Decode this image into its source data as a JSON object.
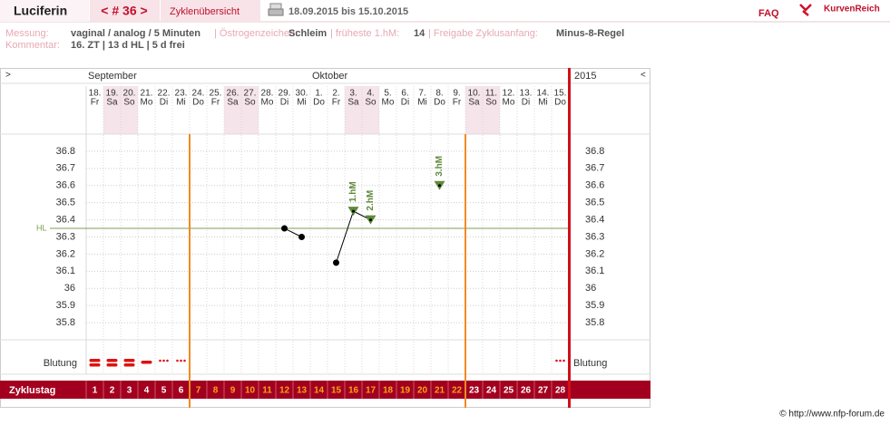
{
  "header": {
    "name": "Luciferin",
    "cycle_nav": "< # 36 >",
    "overview": "Zyklenübersicht",
    "date_range": "18.09.2015 bis 15.10.2015",
    "faq": "FAQ",
    "logo": "KurvenReich"
  },
  "info": {
    "measurement_label": "Messung:",
    "measurement": "vaginal / analog / 5 Minuten",
    "estrogen_label": "| Östrogenzeichen:",
    "estrogen": "Schleim",
    "earliest_label": "| früheste 1.hM:",
    "earliest": 14,
    "release_label": "| Freigabe Zyklusanfang:",
    "release": "Minus-8-Regel",
    "comment_label": "Kommentar:",
    "comment": "16. ZT | 13 d HL | 5 d frei"
  },
  "footer": "© http://www.nfp-forum.de",
  "chart_data": {
    "type": "line",
    "nav_left": ">",
    "nav_right": "<",
    "year": "2015",
    "months": [
      {
        "label": "September",
        "start": 0
      },
      {
        "label": "Oktober",
        "start": 13
      }
    ],
    "days": [
      "18.",
      "19.",
      "20.",
      "21.",
      "22.",
      "23.",
      "24.",
      "25.",
      "26.",
      "27.",
      "28.",
      "29.",
      "30.",
      "1.",
      "2.",
      "3.",
      "4.",
      "5.",
      "6.",
      "7.",
      "8.",
      "9.",
      "10.",
      "11.",
      "12.",
      "13.",
      "14.",
      "15."
    ],
    "weekdays": [
      "Fr",
      "Sa",
      "So",
      "Mo",
      "Di",
      "Mi",
      "Do",
      "Fr",
      "Sa",
      "So",
      "Mo",
      "Di",
      "Mi",
      "Do",
      "Fr",
      "Sa",
      "So",
      "Mo",
      "Di",
      "Mi",
      "Do",
      "Fr",
      "Sa",
      "So",
      "Mo",
      "Di",
      "Mi",
      "Do"
    ],
    "values": [
      null,
      null,
      null,
      null,
      null,
      null,
      null,
      null,
      null,
      null,
      null,
      36.35,
      36.3,
      null,
      36.15,
      36.45,
      36.4,
      null,
      null,
      null,
      36.6,
      null,
      null,
      null,
      null,
      null,
      null,
      null
    ],
    "color": "#000000",
    "point_labels": [
      null,
      null,
      null,
      null,
      null,
      null,
      null,
      null,
      null,
      null,
      null,
      null,
      null,
      null,
      null,
      "1.hM",
      "2.hM",
      null,
      null,
      null,
      "3.hM",
      null,
      null,
      null,
      null,
      null,
      null,
      null
    ],
    "point_label_color": "#5f8a3a",
    "ylim": [
      35.7,
      36.9
    ],
    "yticks": [
      35.8,
      35.9,
      36,
      36.1,
      36.2,
      36.3,
      36.4,
      36.5,
      36.6,
      36.7,
      36.8
    ],
    "grid": true,
    "hl": {
      "value": 36.35,
      "label": "HL",
      "color": "#7aa050"
    },
    "bleeding_label": "Blutung",
    "bleeding": [
      3,
      3,
      3,
      2,
      1,
      1,
      null,
      null,
      null,
      null,
      null,
      null,
      null,
      null,
      null,
      null,
      null,
      null,
      null,
      null,
      null,
      null,
      null,
      null,
      null,
      null,
      null,
      1
    ],
    "bleeding_color": "#e01010",
    "cycle_label": "Zyklustag",
    "cycle_days": [
      1,
      2,
      3,
      4,
      5,
      6,
      7,
      8,
      9,
      10,
      11,
      12,
      13,
      14,
      15,
      16,
      17,
      18,
      19,
      20,
      21,
      22,
      23,
      24,
      25,
      26,
      27,
      28
    ],
    "fertile_range": [
      7,
      22
    ],
    "cover_color": "#f08a24",
    "fertile_text_color": "#f7a21b",
    "weekend_color": "#f5e4e9",
    "band_color": "#a3001f"
  }
}
